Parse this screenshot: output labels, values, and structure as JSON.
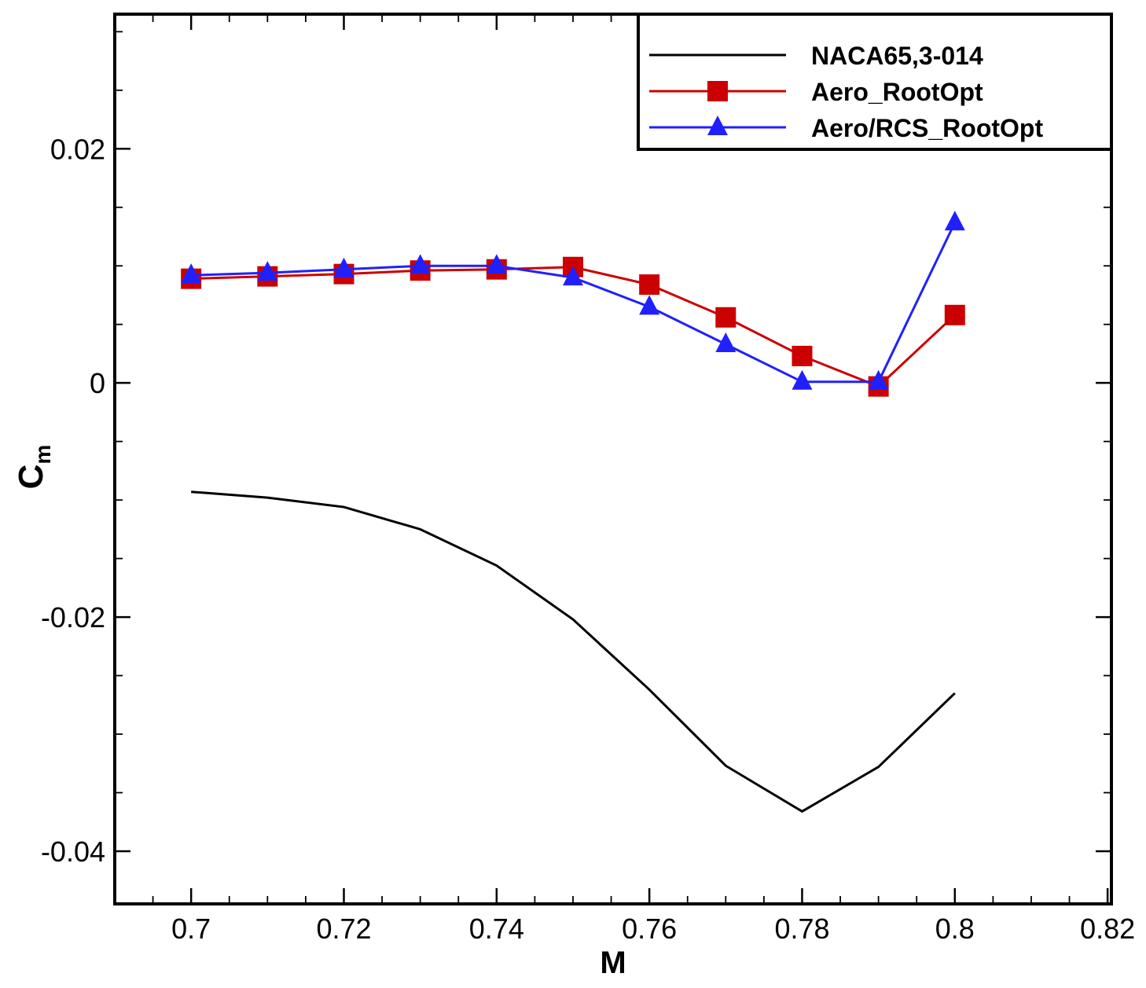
{
  "chart_data": {
    "type": "line",
    "title": "",
    "xlabel": "M",
    "ylabel": "C",
    "ylabel_subscript": "m",
    "xlim": [
      0.69,
      0.8205
    ],
    "ylim": [
      -0.0445,
      0.0315
    ],
    "x_ticks": [
      0.7,
      0.72,
      0.74,
      0.76,
      0.78,
      0.8,
      0.82
    ],
    "x_tick_labels": [
      "0.7",
      "0.72",
      "0.74",
      "0.76",
      "0.78",
      "0.8",
      "0.82"
    ],
    "y_ticks": [
      0.02,
      0,
      -0.02,
      -0.04
    ],
    "y_tick_labels": [
      "0.02",
      "0",
      "-0.02",
      "-0.04"
    ],
    "x_minor_step": 0.005,
    "y_minor_step": 0.005,
    "grid": false,
    "legend_position": "top-right",
    "series": [
      {
        "name": "NACA65,3-014",
        "color": "#000000",
        "marker": "none",
        "x": [
          0.7,
          0.71,
          0.72,
          0.73,
          0.74,
          0.75,
          0.76,
          0.77,
          0.78,
          0.79,
          0.8
        ],
        "y": [
          -0.0093,
          -0.0098,
          -0.0106,
          -0.0125,
          -0.0156,
          -0.0202,
          -0.0262,
          -0.0327,
          -0.0366,
          -0.0328,
          -0.0265
        ]
      },
      {
        "name": "Aero_RootOpt",
        "color": "#cc0000",
        "marker": "square",
        "x": [
          0.7,
          0.71,
          0.72,
          0.73,
          0.74,
          0.75,
          0.76,
          0.77,
          0.78,
          0.79,
          0.8
        ],
        "y": [
          0.0089,
          0.0091,
          0.0093,
          0.0096,
          0.0097,
          0.0099,
          0.0084,
          0.0056,
          0.0023,
          -0.0003,
          0.0058
        ]
      },
      {
        "name": "Aero/RCS_RootOpt",
        "color": "#2020ff",
        "marker": "triangle",
        "x": [
          0.7,
          0.71,
          0.72,
          0.73,
          0.74,
          0.75,
          0.76,
          0.77,
          0.78,
          0.79,
          0.8
        ],
        "y": [
          0.0092,
          0.0094,
          0.0097,
          0.01,
          0.01,
          0.009,
          0.0065,
          0.0033,
          0.0001,
          0.0001,
          0.0137
        ]
      }
    ]
  }
}
